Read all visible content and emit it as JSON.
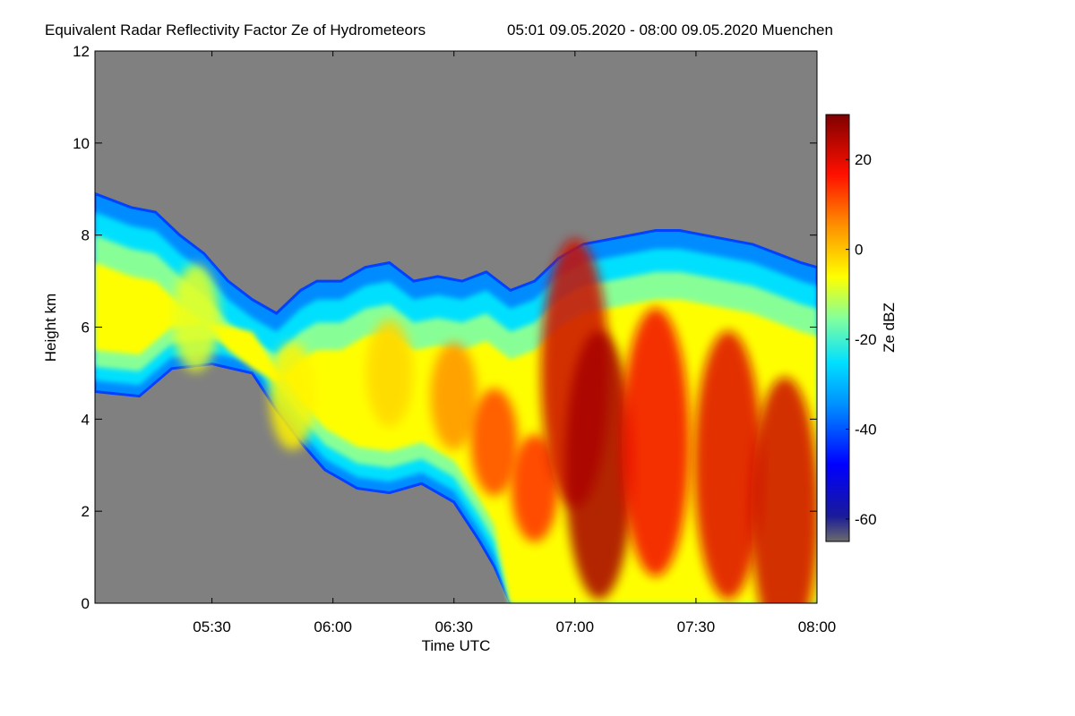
{
  "chart_data": {
    "type": "heatmap",
    "title": "Equivalent Radar Reflectivity Factor Ze of Hydrometeors",
    "subtitle": "05:01 09.05.2020 - 08:00 09.05.2020 Muenchen",
    "xlabel": "Time UTC",
    "ylabel": "Height km",
    "x_range": [
      "05:01",
      "08:00"
    ],
    "xlim_minutes": [
      301,
      480
    ],
    "x_ticks": [
      {
        "label": "05:30",
        "minutes": 330
      },
      {
        "label": "06:00",
        "minutes": 360
      },
      {
        "label": "06:30",
        "minutes": 390
      },
      {
        "label": "07:00",
        "minutes": 420
      },
      {
        "label": "07:30",
        "minutes": 450
      },
      {
        "label": "08:00",
        "minutes": 480
      }
    ],
    "ylim": [
      0,
      12
    ],
    "y_ticks": [
      "0",
      "2",
      "4",
      "6",
      "8",
      "10",
      "12"
    ],
    "colorbar": {
      "label": "Ze dBZ",
      "range": [
        -65,
        30
      ],
      "ticks": [
        "-60",
        "-40",
        "-20",
        "0",
        "20"
      ],
      "tick_values": [
        -60,
        -40,
        -20,
        0,
        20
      ]
    },
    "background_color": "#808080",
    "cloud_top_km": [
      {
        "t": 301,
        "top": 8.9
      },
      {
        "t": 310,
        "top": 8.6
      },
      {
        "t": 316,
        "top": 8.5
      },
      {
        "t": 322,
        "top": 8.0
      },
      {
        "t": 328,
        "top": 7.6
      },
      {
        "t": 334,
        "top": 7.0
      },
      {
        "t": 340,
        "top": 6.6
      },
      {
        "t": 346,
        "top": 6.3
      },
      {
        "t": 352,
        "top": 6.8
      },
      {
        "t": 356,
        "top": 7.0
      },
      {
        "t": 362,
        "top": 7.0
      },
      {
        "t": 368,
        "top": 7.3
      },
      {
        "t": 374,
        "top": 7.4
      },
      {
        "t": 380,
        "top": 7.0
      },
      {
        "t": 386,
        "top": 7.1
      },
      {
        "t": 392,
        "top": 7.0
      },
      {
        "t": 398,
        "top": 7.2
      },
      {
        "t": 404,
        "top": 6.8
      },
      {
        "t": 410,
        "top": 7.0
      },
      {
        "t": 416,
        "top": 7.5
      },
      {
        "t": 422,
        "top": 7.8
      },
      {
        "t": 428,
        "top": 7.9
      },
      {
        "t": 434,
        "top": 8.0
      },
      {
        "t": 440,
        "top": 8.1
      },
      {
        "t": 446,
        "top": 8.1
      },
      {
        "t": 452,
        "top": 8.0
      },
      {
        "t": 458,
        "top": 7.9
      },
      {
        "t": 464,
        "top": 7.8
      },
      {
        "t": 470,
        "top": 7.6
      },
      {
        "t": 476,
        "top": 7.4
      },
      {
        "t": 480,
        "top": 7.3
      }
    ],
    "cloud_base_km": [
      {
        "t": 301,
        "base": 4.6
      },
      {
        "t": 312,
        "base": 4.5
      },
      {
        "t": 320,
        "base": 5.1
      },
      {
        "t": 330,
        "base": 5.2
      },
      {
        "t": 340,
        "base": 5.0
      },
      {
        "t": 346,
        "base": 4.2
      },
      {
        "t": 352,
        "base": 3.5
      },
      {
        "t": 358,
        "base": 2.9
      },
      {
        "t": 366,
        "base": 2.5
      },
      {
        "t": 374,
        "base": 2.4
      },
      {
        "t": 382,
        "base": 2.6
      },
      {
        "t": 390,
        "base": 2.2
      },
      {
        "t": 396,
        "base": 1.4
      },
      {
        "t": 400,
        "base": 0.8
      },
      {
        "t": 404,
        "base": 0.0
      },
      {
        "t": 480,
        "base": 0.0
      }
    ],
    "core_cells": [
      {
        "t": 326,
        "h": 6.2,
        "dbz": -8
      },
      {
        "t": 350,
        "h": 4.5,
        "dbz": -5
      },
      {
        "t": 374,
        "h": 5.0,
        "dbz": -2
      },
      {
        "t": 390,
        "h": 4.5,
        "dbz": 5
      },
      {
        "t": 400,
        "h": 3.5,
        "dbz": 12
      },
      {
        "t": 410,
        "h": 2.5,
        "dbz": 14
      },
      {
        "t": 420,
        "h": 5.0,
        "dbz": 22
      },
      {
        "t": 426,
        "h": 3.0,
        "dbz": 26
      },
      {
        "t": 440,
        "h": 3.5,
        "dbz": 18
      },
      {
        "t": 458,
        "h": 3.0,
        "dbz": 20
      },
      {
        "t": 472,
        "h": 2.0,
        "dbz": 22
      }
    ]
  }
}
